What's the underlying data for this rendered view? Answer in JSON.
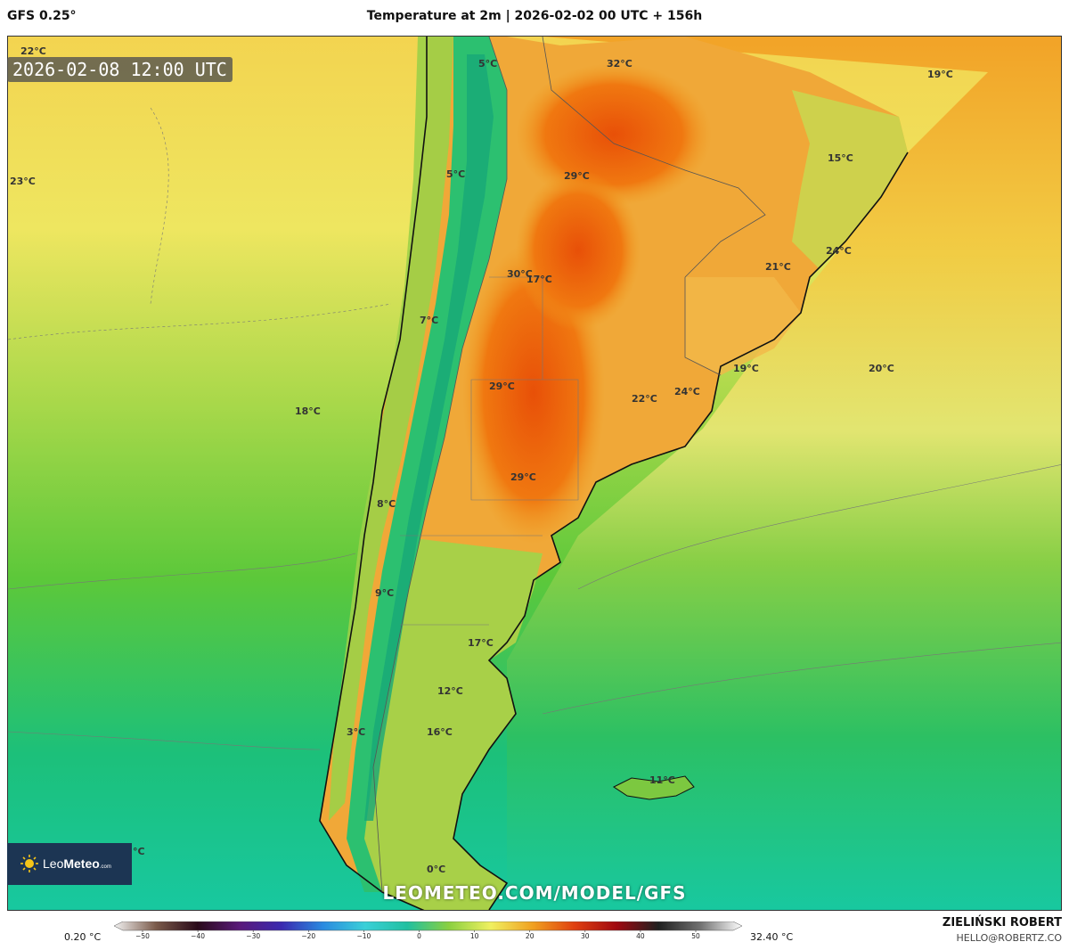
{
  "header": {
    "model": "GFS 0.25°",
    "title": "Temperature at 2m | 2026-02-02 00 UTC + 156h"
  },
  "valid_time": "2026-02-08 12:00 UTC",
  "map_labels": [
    {
      "text": "22°C"
    },
    {
      "text": "23°C"
    },
    {
      "text": "5°C"
    },
    {
      "text": "5°C"
    },
    {
      "text": "32°C"
    },
    {
      "text": "19°C"
    },
    {
      "text": "15°C"
    },
    {
      "text": "29°C"
    },
    {
      "text": "30°C"
    },
    {
      "text": "17°C"
    },
    {
      "text": "21°C"
    },
    {
      "text": "24°C"
    },
    {
      "text": "7°C"
    },
    {
      "text": "19°C"
    },
    {
      "text": "20°C"
    },
    {
      "text": "18°C"
    },
    {
      "text": "29°C"
    },
    {
      "text": "22°C"
    },
    {
      "text": "24°C"
    },
    {
      "text": "8°C"
    },
    {
      "text": "29°C"
    },
    {
      "text": "9°C"
    },
    {
      "text": "17°C"
    },
    {
      "text": "12°C"
    },
    {
      "text": "16°C"
    },
    {
      "text": "3°C"
    },
    {
      "text": "11°C"
    },
    {
      "text": "0°C"
    },
    {
      "text": "°C"
    }
  ],
  "logo": {
    "name_light": "Leo",
    "name_bold": "Meteo",
    "domain": ".com"
  },
  "watermark": "LEOMETEO.COM/MODEL/GFS",
  "scale": {
    "min_label": "0.20 °C",
    "max_label": "32.40 °C",
    "ticks": [
      "−50",
      "−40",
      "−30",
      "−20",
      "−10",
      "0",
      "10",
      "20",
      "30",
      "40",
      "50"
    ],
    "colors": [
      "#f2f2f2",
      "#7a5a4a",
      "#2a0a1a",
      "#5a1a7a",
      "#3a2ab0",
      "#2a8ae0",
      "#3ad0d8",
      "#20c0a0",
      "#8ad040",
      "#f0f060",
      "#f0a020",
      "#e04010",
      "#a00810",
      "#202020",
      "#707070",
      "#ffffff"
    ]
  },
  "author": {
    "name": "ZIELIŃSKI ROBERT",
    "email": "HELLO@ROBERTZ.CO"
  }
}
